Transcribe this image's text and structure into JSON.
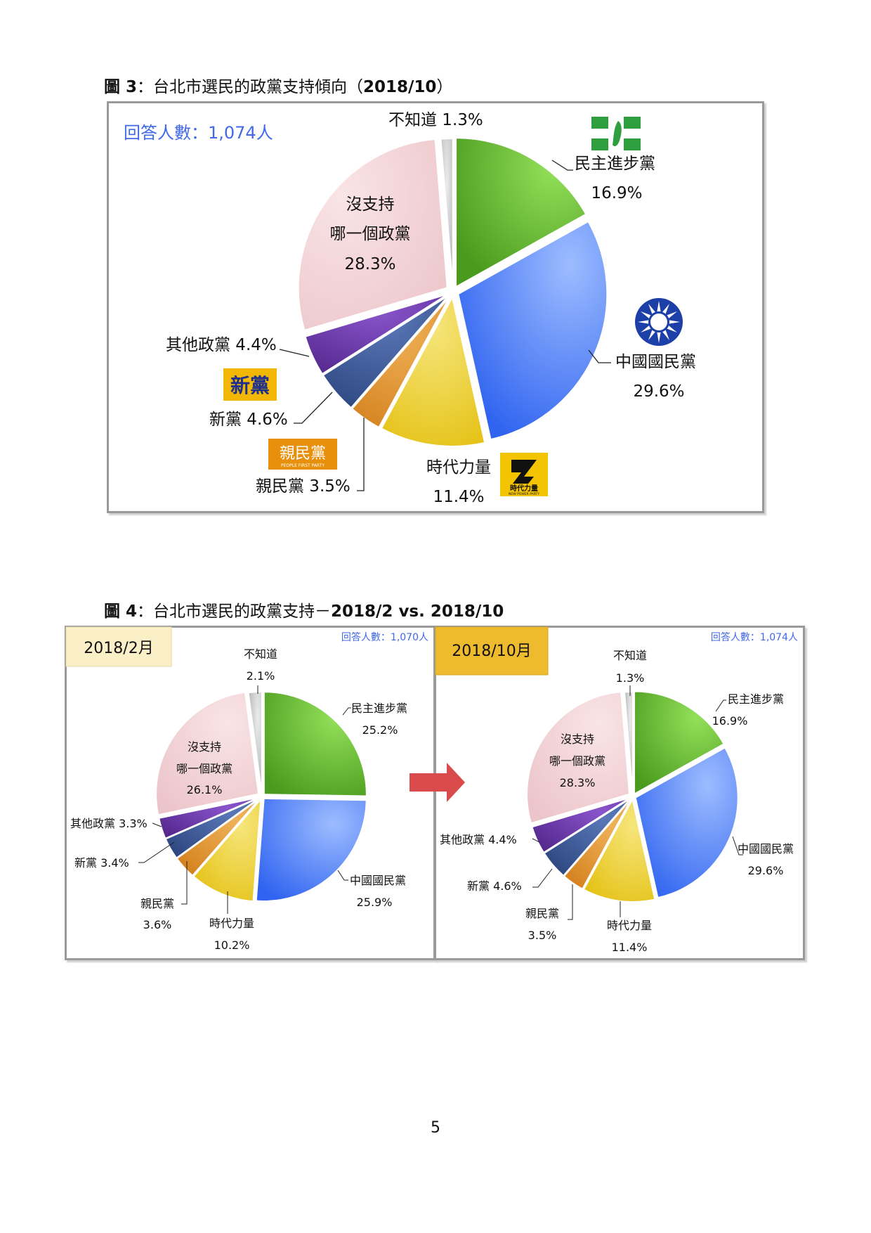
{
  "figure3": {
    "title_prefix": "圖 3",
    "title_text": "：台北市選民的政黨支持傾向（",
    "title_year": "2018/10",
    "title_suffix": "）",
    "respondents": "回答人數：1,074人"
  },
  "figure4": {
    "title_prefix": "圖 4",
    "title_text": "：台北市選民的政黨支持－",
    "title_bold": "2018/2 vs. 2018/10",
    "left_period": "2018/2月",
    "right_period": "2018/10月",
    "left_respondents": "回答人數：1,070人",
    "right_respondents": "回答人數：1,074人"
  },
  "page_number": "5",
  "logos": {
    "dpp": "dpp-logo",
    "kmt": "kmt-logo",
    "new_party": {
      "text": "新黨",
      "bg": "#f2b705"
    },
    "pfp": {
      "text": "親民黨",
      "sub": "PEOPLE FIRST PARTY",
      "bg": "#e8900c"
    },
    "npp": {
      "text": "時代力量",
      "sub": "NEW POWER PARTY",
      "bg": "#f5c400"
    }
  },
  "chart_data": [
    {
      "type": "pie",
      "title": "台北市選民的政黨支持傾向（2018/10）",
      "categories": [
        "民主進步黨",
        "中國國民黨",
        "時代力量",
        "親民黨",
        "新黨",
        "其他政黨",
        "沒支持哪一個政黨",
        "不知道"
      ],
      "values": [
        16.9,
        29.6,
        11.4,
        3.5,
        4.6,
        4.4,
        28.3,
        1.3
      ],
      "labels": [
        "民主進步黨",
        "中國國民黨",
        "時代力量",
        "親民黨",
        "新黨",
        "其他政黨",
        "沒支持\n哪一個政黨",
        "不知道"
      ],
      "value_labels": [
        "16.9%",
        "29.6%",
        "11.4%",
        "3.5%",
        "4.6%",
        "4.4%",
        "28.3%",
        "1.3%"
      ],
      "colors": [
        "#6ab535",
        "#5c8ef5",
        "#f1d54a",
        "#e89a33",
        "#3e5a99",
        "#6a3fa6",
        "#f2d2d6",
        "#cccccc"
      ]
    },
    {
      "type": "pie",
      "title": "2018/2月",
      "categories": [
        "民主進步黨",
        "中國國民黨",
        "時代力量",
        "親民黨",
        "新黨",
        "其他政黨",
        "沒支持哪一個政黨",
        "不知道"
      ],
      "values": [
        25.2,
        25.9,
        10.2,
        3.6,
        3.4,
        3.3,
        26.1,
        2.1
      ],
      "value_labels": [
        "25.2%",
        "25.9%",
        "10.2%",
        "3.6%",
        "3.4%",
        "3.3%",
        "26.1%",
        "2.1%"
      ],
      "colors": [
        "#6ab535",
        "#5c8ef5",
        "#f1d54a",
        "#e89a33",
        "#3e5a99",
        "#6a3fa6",
        "#f2d2d6",
        "#cccccc"
      ]
    },
    {
      "type": "pie",
      "title": "2018/10月",
      "categories": [
        "民主進步黨",
        "中國國民黨",
        "時代力量",
        "親民黨",
        "新黨",
        "其他政黨",
        "沒支持哪一個政黨",
        "不知道"
      ],
      "values": [
        16.9,
        29.6,
        11.4,
        3.5,
        4.6,
        4.4,
        28.3,
        1.3
      ],
      "value_labels": [
        "16.9%",
        "29.6%",
        "11.4%",
        "3.5%",
        "4.6%",
        "4.4%",
        "28.3%",
        "1.3%"
      ],
      "colors": [
        "#6ab535",
        "#5c8ef5",
        "#f1d54a",
        "#e89a33",
        "#3e5a99",
        "#6a3fa6",
        "#f2d2d6",
        "#cccccc"
      ]
    }
  ]
}
